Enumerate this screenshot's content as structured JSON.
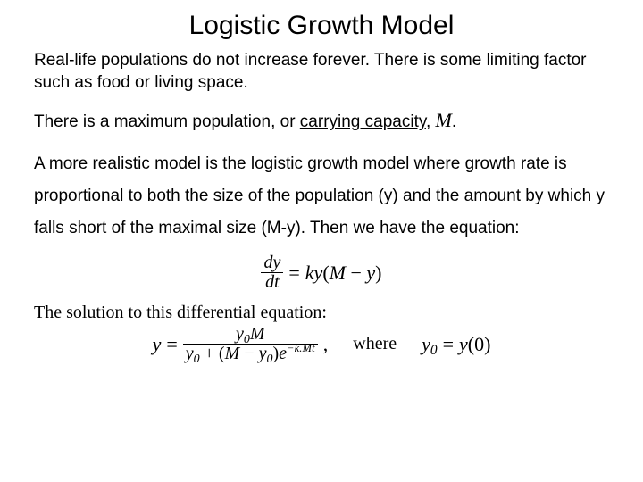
{
  "title": "Logistic Growth Model",
  "p1": "Real-life populations do not increase forever.   There is some limiting factor such as food or living space.",
  "p2a": "There is a maximum population, or ",
  "p2u": "carrying capacity",
  "p2b": ", ",
  "p2M": "M",
  "p2c": ".",
  "p3a": "A more realistic model is the ",
  "p3u": "logistic growth model",
  "p3b": " where growth rate is proportional to both the size of the population (y) and the amount by which y falls short of the maximal size (M-y). Then we have the equation:",
  "eq1": {
    "num": "dy",
    "den": "dt",
    "rhs1": "=",
    "rhs2": "ky",
    "rhs3": "(",
    "rhs4": "M",
    "rhs5": " − ",
    "rhs6": "y",
    "rhs7": ")"
  },
  "p4": "The solution to this differential equation:",
  "eq2": {
    "lhs": "y",
    "eq": " = ",
    "num_y": "y",
    "num_sub": "0",
    "num_M": "M",
    "den_y1": "y",
    "den_sub1": "0",
    "den_plus": " + (",
    "den_M": "M",
    "den_minus": " − ",
    "den_y2": "y",
    "den_sub2": "0",
    "den_close": ")",
    "den_e": "e",
    "den_exp": "−k.Mt",
    "comma": ",",
    "where": "where",
    "cond_y": "y",
    "cond_sub": "0",
    "cond_eq": " = ",
    "cond_yfn": "y",
    "cond_open": "(0)"
  },
  "style": {
    "title_color": "#000000",
    "text_color": "#000000",
    "background": "#ffffff",
    "title_fontsize": 30,
    "body_fontsize": 19,
    "eq_fontsize": 22
  }
}
